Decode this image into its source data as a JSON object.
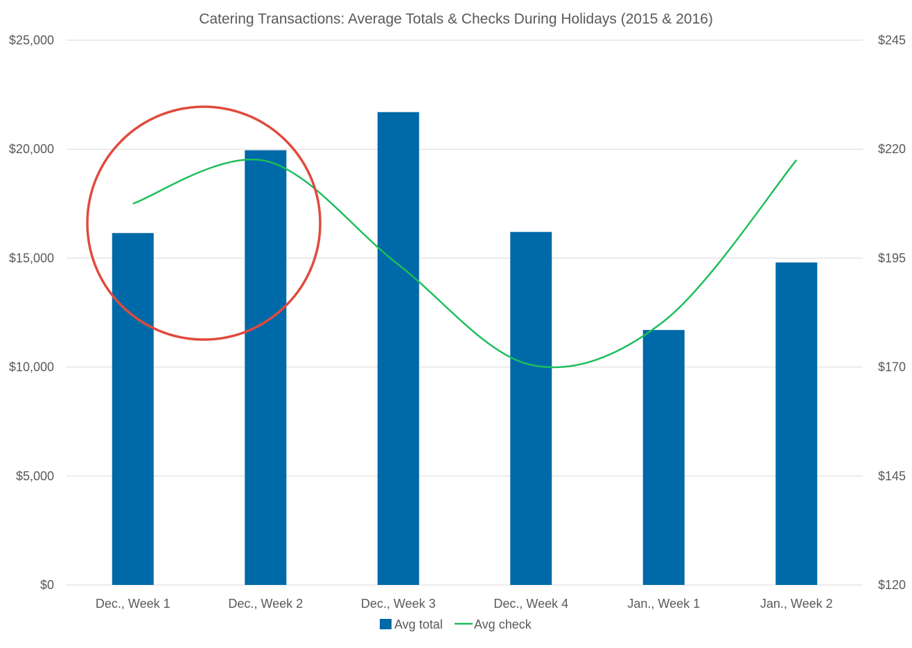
{
  "chart_data": {
    "type": "bar",
    "title": "Catering Transactions: Average Totals & Checks During Holidays (2015 & 2016)",
    "categories": [
      "Dec., Week 1",
      "Dec., Week 2",
      "Dec., Week 3",
      "Dec., Week 4",
      "Jan., Week 1",
      "Jan., Week 2"
    ],
    "series": [
      {
        "name": "Avg total",
        "type": "bar",
        "axis": "left",
        "color": "#0069A8",
        "values": [
          16150,
          19950,
          21700,
          16200,
          11700,
          14800
        ]
      },
      {
        "name": "Avg check",
        "type": "line",
        "axis": "right",
        "color": "#1DBE5B",
        "smooth": true,
        "values": [
          207.5,
          217.3,
          193.5,
          170.5,
          180.5,
          217.5
        ]
      }
    ],
    "left_axis": {
      "min": 0,
      "max": 25000,
      "step": 5000,
      "tick_labels": [
        "$0",
        "$5,000",
        "$10,000",
        "$15,000",
        "$20,000",
        "$25,000"
      ]
    },
    "right_axis": {
      "min": 120,
      "max": 245,
      "step": 25,
      "tick_labels": [
        "$120",
        "$145",
        "$170",
        "$195",
        "$220",
        "$245"
      ]
    },
    "grid": true,
    "legend": {
      "position": "bottom",
      "items": [
        "Avg total",
        "Avg check"
      ]
    },
    "annotation": {
      "shape": "circle",
      "color": "#E04A3C",
      "highlights": [
        "Dec., Week 1",
        "Dec., Week 2"
      ]
    }
  }
}
